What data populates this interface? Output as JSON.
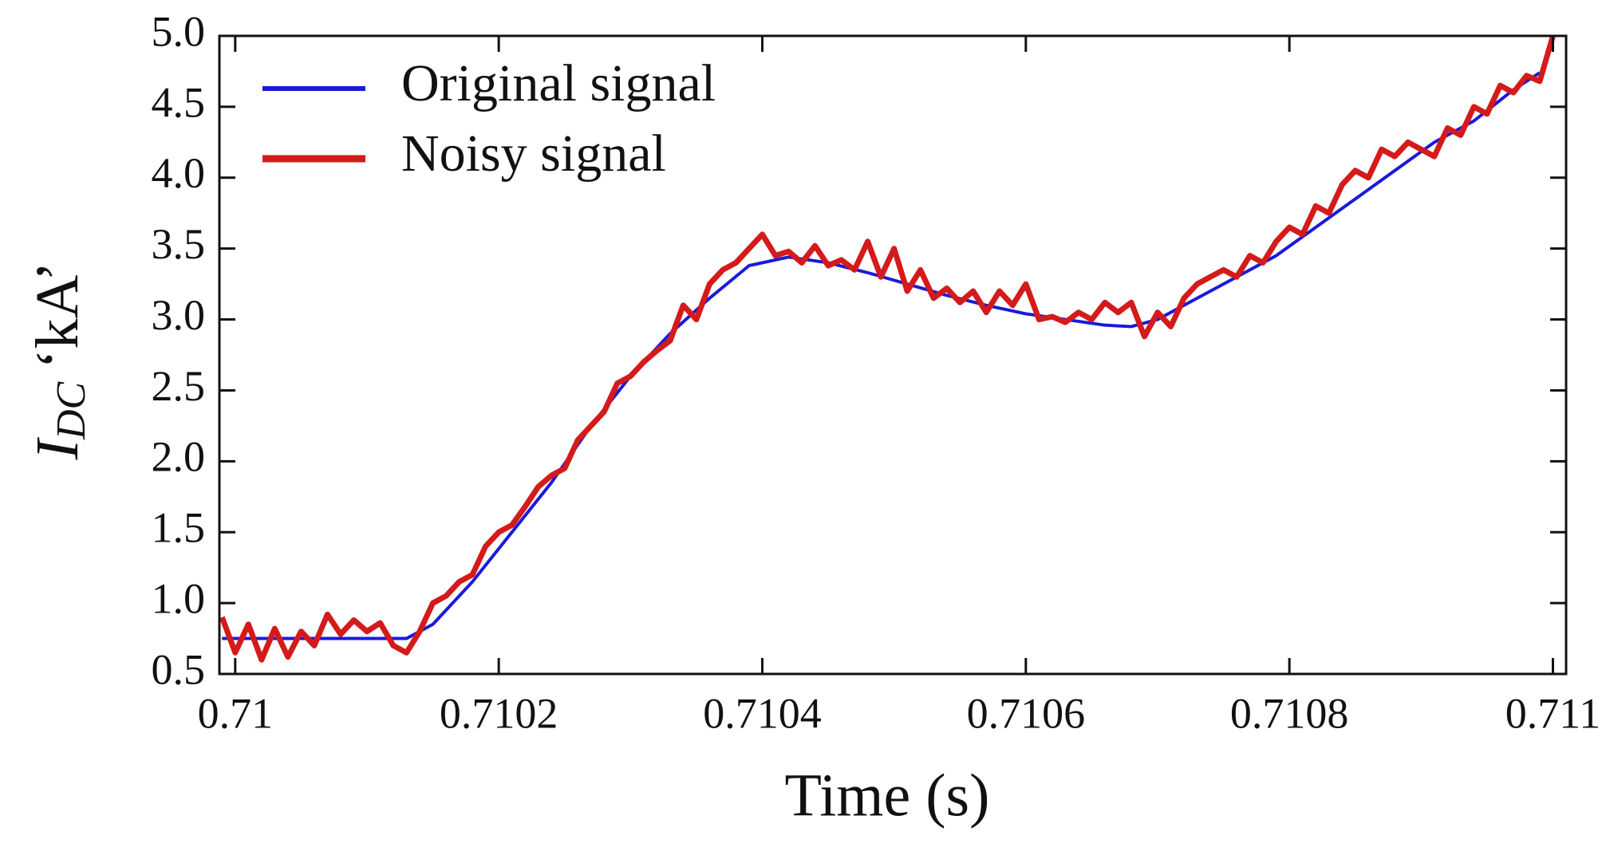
{
  "chart_data": {
    "type": "line",
    "xlabel": "Time (s)",
    "ylabel": {
      "main": "I",
      "sub": "DC",
      "unit": "‘kA’"
    },
    "xlim": [
      0.709988,
      0.71101
    ],
    "ylim": [
      0.5,
      5.0
    ],
    "xticks": [
      0.71,
      0.7102,
      0.7104,
      0.7106,
      0.7108,
      0.711
    ],
    "yticks": [
      0.5,
      {
        "value": 1,
        "label": "1.0"
      },
      1.5,
      {
        "value": 2,
        "label": "2.0"
      },
      2.5,
      {
        "value": 3,
        "label": "3.0"
      },
      3.5,
      {
        "value": 4,
        "label": "4.0"
      },
      4.5,
      {
        "value": 5,
        "label": "5.0"
      }
    ],
    "grid": false,
    "legend": "top-left",
    "series": [
      {
        "name": "Original signal",
        "color": "#1a1adb",
        "width": 4,
        "x": [
          0.70999,
          0.71005,
          0.7101,
          0.71013,
          0.71015,
          0.71018,
          0.71021,
          0.71024,
          0.71027,
          0.7103,
          0.71033,
          0.71036,
          0.71039,
          0.71042,
          0.71045,
          0.71048,
          0.71051,
          0.71054,
          0.71057,
          0.7106,
          0.71063,
          0.71066,
          0.71068,
          0.7107,
          0.71073,
          0.71076,
          0.71079,
          0.71082,
          0.71085,
          0.71088,
          0.71091,
          0.71094,
          0.71097,
          0.71099
        ],
        "values": [
          0.75,
          0.75,
          0.75,
          0.75,
          0.85,
          1.15,
          1.5,
          1.85,
          2.25,
          2.6,
          2.9,
          3.15,
          3.38,
          3.44,
          3.4,
          3.33,
          3.25,
          3.17,
          3.1,
          3.04,
          3.0,
          2.96,
          2.95,
          3.0,
          3.15,
          3.3,
          3.45,
          3.65,
          3.85,
          4.05,
          4.25,
          4.4,
          4.62,
          4.74
        ]
      },
      {
        "name": "Noisy signal",
        "color": "#d41a1a",
        "width": 7,
        "x": [
          0.70999,
          0.71,
          0.71001,
          0.71002,
          0.71003,
          0.71004,
          0.71005,
          0.71006,
          0.71007,
          0.71008,
          0.71009,
          0.7101,
          0.71011,
          0.71012,
          0.71013,
          0.71014,
          0.71015,
          0.71016,
          0.71017,
          0.71018,
          0.71019,
          0.7102,
          0.71021,
          0.71022,
          0.71023,
          0.71024,
          0.71025,
          0.71026,
          0.71027,
          0.71028,
          0.71029,
          0.7103,
          0.71031,
          0.71032,
          0.71033,
          0.71034,
          0.71035,
          0.71036,
          0.71037,
          0.71038,
          0.71039,
          0.7104,
          0.71041,
          0.71042,
          0.71043,
          0.71044,
          0.71045,
          0.71046,
          0.71047,
          0.71048,
          0.71049,
          0.7105,
          0.71051,
          0.71052,
          0.71053,
          0.71054,
          0.71055,
          0.71056,
          0.71057,
          0.71058,
          0.71059,
          0.7106,
          0.71061,
          0.71062,
          0.71063,
          0.71064,
          0.71065,
          0.71066,
          0.71067,
          0.71068,
          0.71069,
          0.7107,
          0.71071,
          0.71072,
          0.71073,
          0.71074,
          0.71075,
          0.71076,
          0.71077,
          0.71078,
          0.71079,
          0.7108,
          0.71081,
          0.71082,
          0.71083,
          0.71084,
          0.71085,
          0.71086,
          0.71087,
          0.71088,
          0.71089,
          0.7109,
          0.71091,
          0.71092,
          0.71093,
          0.71094,
          0.71095,
          0.71096,
          0.71097,
          0.71098,
          0.71099,
          0.711
        ],
        "values": [
          0.9,
          0.65,
          0.85,
          0.6,
          0.82,
          0.62,
          0.8,
          0.7,
          0.92,
          0.78,
          0.88,
          0.8,
          0.86,
          0.7,
          0.65,
          0.8,
          1.0,
          1.05,
          1.15,
          1.2,
          1.4,
          1.5,
          1.55,
          1.68,
          1.82,
          1.9,
          1.95,
          2.15,
          2.25,
          2.35,
          2.55,
          2.6,
          2.7,
          2.78,
          2.85,
          3.1,
          3.0,
          3.25,
          3.35,
          3.4,
          3.5,
          3.6,
          3.45,
          3.48,
          3.4,
          3.52,
          3.38,
          3.42,
          3.35,
          3.55,
          3.3,
          3.5,
          3.2,
          3.35,
          3.15,
          3.22,
          3.12,
          3.2,
          3.05,
          3.2,
          3.1,
          3.25,
          3.0,
          3.02,
          2.98,
          3.05,
          3.0,
          3.12,
          3.05,
          3.12,
          2.88,
          3.05,
          2.95,
          3.15,
          3.25,
          3.3,
          3.35,
          3.3,
          3.45,
          3.4,
          3.55,
          3.65,
          3.6,
          3.8,
          3.75,
          3.95,
          4.05,
          4.0,
          4.2,
          4.15,
          4.25,
          4.2,
          4.15,
          4.35,
          4.3,
          4.5,
          4.45,
          4.65,
          4.6,
          4.72,
          4.68,
          5.0
        ]
      }
    ]
  }
}
